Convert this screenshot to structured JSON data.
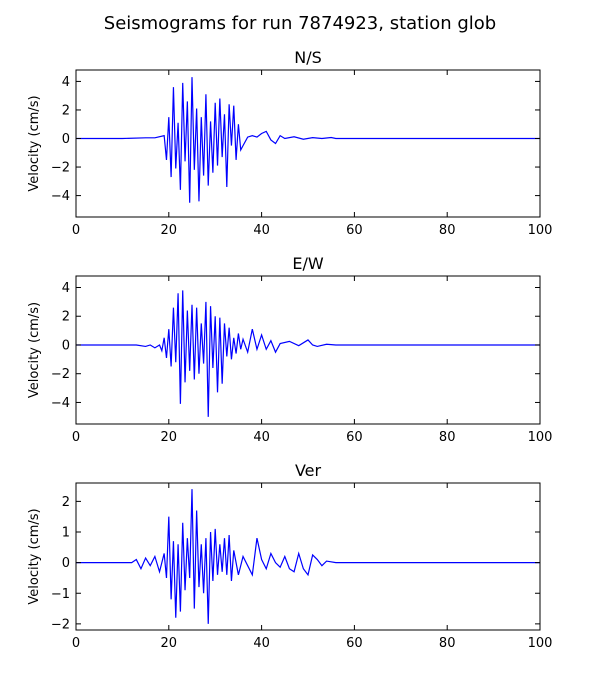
{
  "figure": {
    "title": "Seismograms for run 7874923, station glob",
    "line_color": "#0000ff"
  },
  "chart_data": [
    {
      "type": "line",
      "title": "N/S",
      "xlabel": "",
      "ylabel": "Velocity (cm/s)",
      "xlim": [
        0,
        100
      ],
      "ylim": [
        -5.5,
        4.8
      ],
      "xticks": [
        0,
        20,
        40,
        60,
        80,
        100
      ],
      "yticks": [
        -4,
        -2,
        0,
        2,
        4
      ],
      "series": [
        {
          "x": [
            0,
            10,
            15,
            17,
            19,
            19.5,
            20,
            20.5,
            21,
            21.5,
            22,
            22.5,
            23,
            23.5,
            24,
            24.5,
            25,
            25.5,
            26,
            26.5,
            27,
            27.5,
            28,
            28.5,
            29,
            29.5,
            30,
            30.5,
            31,
            31.5,
            32,
            32.5,
            33,
            33.5,
            34,
            34.5,
            35,
            35.5,
            36,
            37,
            38,
            39,
            40,
            41,
            42,
            43,
            44,
            45,
            47,
            49,
            51,
            53,
            55,
            56,
            58,
            60,
            70,
            80,
            90,
            100
          ],
          "y": [
            0,
            0,
            0.05,
            0.05,
            0.2,
            -1.5,
            1.5,
            -2.7,
            3.6,
            -2.1,
            1.1,
            -3.6,
            3.9,
            -1.6,
            2.6,
            -4.5,
            4.3,
            -2.2,
            2.1,
            -4.4,
            1.5,
            -2.6,
            3.1,
            -3.3,
            1.2,
            -2.4,
            2.5,
            -1.9,
            2.8,
            -1.3,
            1.7,
            -3.4,
            2.4,
            -0.5,
            2.3,
            -1.5,
            1.0,
            -0.8,
            -0.5,
            0.1,
            0.2,
            0.1,
            0.35,
            0.5,
            -0.1,
            -0.35,
            0.2,
            0.0,
            0.12,
            -0.05,
            0.06,
            0.0,
            0.07,
            0.0,
            0.0,
            0.0,
            0.0,
            0.0,
            0.0,
            0.0
          ]
        }
      ]
    },
    {
      "type": "line",
      "title": "E/W",
      "xlabel": "",
      "ylabel": "Velocity (cm/s)",
      "xlim": [
        0,
        100
      ],
      "ylim": [
        -5.5,
        4.8
      ],
      "xticks": [
        0,
        20,
        40,
        60,
        80,
        100
      ],
      "yticks": [
        -4,
        -2,
        0,
        2,
        4
      ],
      "series": [
        {
          "x": [
            0,
            10,
            13,
            15,
            16,
            17,
            18,
            18.5,
            19,
            19.5,
            20,
            20.5,
            21,
            21.5,
            22,
            22.5,
            23,
            23.5,
            24,
            24.5,
            25,
            25.5,
            26,
            26.5,
            27,
            27.5,
            28,
            28.5,
            29,
            29.5,
            30,
            30.5,
            31,
            31.5,
            32,
            32.5,
            33,
            33.5,
            34,
            34.5,
            35,
            35.5,
            36,
            37,
            38,
            39,
            40,
            41,
            42,
            43,
            44,
            46,
            48,
            50,
            51,
            52,
            54,
            56,
            58,
            60,
            70,
            80,
            90,
            100
          ],
          "y": [
            0,
            0,
            0,
            -0.1,
            0.0,
            -0.2,
            0.0,
            -0.4,
            0.5,
            -0.9,
            1.1,
            -1.5,
            2.6,
            -1.2,
            3.6,
            -4.1,
            3.8,
            -2.6,
            2.4,
            -1.8,
            2.8,
            -2.4,
            2.6,
            -2.0,
            1.5,
            -1.3,
            3.0,
            -5.0,
            2.7,
            -1.6,
            2.0,
            -3.3,
            1.9,
            -2.7,
            1.5,
            -0.8,
            1.2,
            -1.0,
            0.5,
            -0.6,
            0.8,
            -0.3,
            0.4,
            -0.5,
            1.1,
            -0.3,
            0.7,
            -0.3,
            0.3,
            -0.5,
            0.1,
            0.25,
            -0.05,
            0.35,
            0.0,
            -0.1,
            0.05,
            0.0,
            0.0,
            0.0,
            0.0,
            0.0,
            0.0,
            0.0
          ]
        }
      ]
    },
    {
      "type": "line",
      "title": "Ver",
      "xlabel": "",
      "ylabel": "Velocity (cm/s)",
      "xlim": [
        0,
        100
      ],
      "ylim": [
        -2.2,
        2.6
      ],
      "xticks": [
        0,
        20,
        40,
        60,
        80,
        100
      ],
      "yticks": [
        -2,
        -1,
        0,
        1,
        2
      ],
      "series": [
        {
          "x": [
            0,
            10,
            12,
            13,
            14,
            15,
            16,
            17,
            18,
            19,
            19.5,
            20,
            20.5,
            21,
            21.5,
            22,
            22.5,
            23,
            23.5,
            24,
            24.5,
            25,
            25.5,
            26,
            26.5,
            27,
            27.5,
            28,
            28.5,
            29,
            29.5,
            30,
            30.5,
            31,
            31.5,
            32,
            32.5,
            33,
            33.5,
            34,
            35,
            36,
            37,
            38,
            39,
            40,
            41,
            42,
            43,
            44,
            45,
            46,
            47,
            48,
            49,
            50,
            51,
            52,
            53,
            54,
            56,
            58,
            60,
            70,
            80,
            90,
            100
          ],
          "y": [
            0,
            0,
            0.0,
            0.1,
            -0.2,
            0.15,
            -0.1,
            0.2,
            -0.3,
            0.3,
            -0.5,
            1.5,
            -1.2,
            0.7,
            -1.8,
            0.6,
            -1.6,
            1.3,
            -0.9,
            0.8,
            -0.5,
            2.4,
            -1.5,
            1.7,
            -0.8,
            0.6,
            -1.0,
            0.8,
            -2.0,
            1.0,
            -0.6,
            1.1,
            -0.4,
            0.6,
            -0.3,
            0.8,
            -0.4,
            0.9,
            -0.6,
            0.4,
            -0.4,
            0.2,
            -0.1,
            -0.4,
            0.8,
            0.1,
            -0.2,
            0.3,
            0.0,
            -0.15,
            0.2,
            -0.2,
            -0.3,
            0.3,
            -0.2,
            -0.4,
            0.25,
            0.1,
            -0.1,
            0.05,
            0.0,
            0.0,
            0.0,
            0.0,
            0.0,
            0.0,
            0.0
          ]
        }
      ]
    }
  ]
}
